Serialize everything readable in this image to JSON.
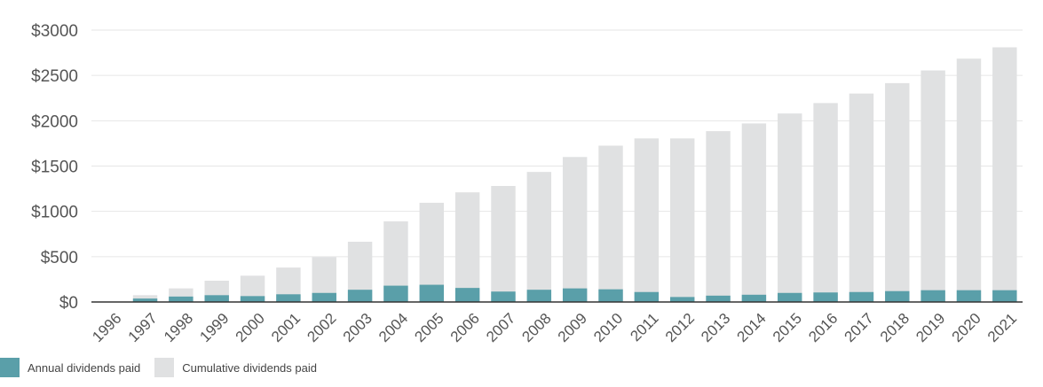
{
  "colors": {
    "annual": "#5a9fa9",
    "cumulative": "#e0e1e2",
    "grid": "#e6e6e6",
    "axis": "#333333"
  },
  "legend": {
    "annual_label": "Annual dividends paid",
    "cumulative_label": "Cumulative dividends paid"
  },
  "chart_data": {
    "type": "bar",
    "stacking": "overlaid",
    "categories": [
      "1996",
      "1997",
      "1998",
      "1999",
      "2000",
      "2001",
      "2002",
      "2003",
      "2004",
      "2005",
      "2006",
      "2007",
      "2008",
      "2009",
      "2010",
      "2011",
      "2012",
      "2013",
      "2014",
      "2015",
      "2016",
      "2017",
      "2018",
      "2019",
      "2020",
      "2021"
    ],
    "series": [
      {
        "name": "Cumulative dividends paid",
        "values": [
          0,
          75,
          150,
          235,
          290,
          380,
          495,
          665,
          890,
          1095,
          1210,
          1280,
          1435,
          1600,
          1725,
          1805,
          1805,
          1885,
          1970,
          2080,
          2195,
          2300,
          2415,
          2555,
          2685,
          2810
        ]
      },
      {
        "name": "Annual dividends paid",
        "values": [
          0,
          38,
          60,
          75,
          65,
          85,
          100,
          135,
          180,
          190,
          155,
          115,
          135,
          150,
          140,
          110,
          55,
          70,
          80,
          100,
          105,
          110,
          120,
          130,
          130,
          130
        ]
      }
    ],
    "yticks": [
      "$0",
      "$500",
      "$1000",
      "$1500",
      "$2000",
      "$2500",
      "$3000"
    ],
    "ytick_values": [
      0,
      500,
      1000,
      1500,
      2000,
      2500,
      3000
    ],
    "ylim": [
      0,
      3000
    ],
    "grid": true,
    "legend_position": "bottom-left"
  }
}
